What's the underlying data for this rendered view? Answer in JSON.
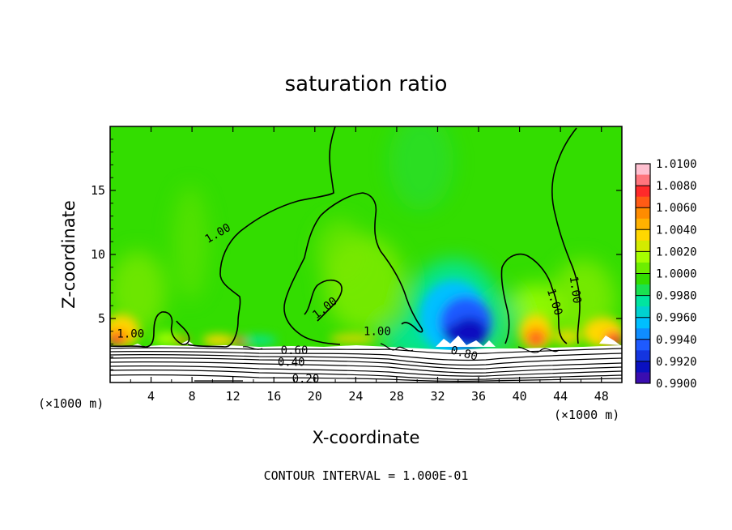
{
  "chart_data": {
    "type": "heatmap",
    "title": "saturation ratio",
    "xlabel": "X-coordinate",
    "ylabel": "Z-coordinate",
    "x_unit": "(×1000 m)",
    "y_unit": "(×1000 m)",
    "xlim": [
      0,
      50
    ],
    "ylim": [
      0,
      20
    ],
    "x_ticks": [
      4,
      8,
      12,
      16,
      20,
      24,
      28,
      32,
      36,
      40,
      44,
      48
    ],
    "y_ticks": [
      5,
      10,
      15
    ],
    "colorbar": {
      "levels": [
        "1.0100",
        "1.0080",
        "1.0060",
        "1.0040",
        "1.0020",
        "1.0000",
        "0.9980",
        "0.9960",
        "0.9940",
        "0.9920",
        "0.9900"
      ],
      "colors": [
        "#ffc0d0",
        "#ff2a2a",
        "#ff8c00",
        "#ffd700",
        "#a6ff00",
        "#33dd00",
        "#00e5a0",
        "#00bfff",
        "#1e5aff",
        "#0a10c0",
        "#6a0aa0"
      ]
    },
    "contour_labels": [
      {
        "text": "1.00",
        "x": 10.7,
        "z": 11.4,
        "angle": -30
      },
      {
        "text": "1.00",
        "x": 2.0,
        "z": 3.5,
        "angle": 0
      },
      {
        "text": "1.00",
        "x": 21.2,
        "z": 5.6,
        "angle": -38
      },
      {
        "text": "1.00",
        "x": 26.1,
        "z": 3.7,
        "angle": 0
      },
      {
        "text": "1.00",
        "x": 43.1,
        "z": 6.2,
        "angle": 72
      },
      {
        "text": "1.00",
        "x": 45.1,
        "z": 7.2,
        "angle": 82
      },
      {
        "text": "0.60",
        "x": 18.0,
        "z": 2.2,
        "angle": 0
      },
      {
        "text": "0.40",
        "x": 17.7,
        "z": 1.3,
        "angle": 0
      },
      {
        "text": "0.20",
        "x": 19.1,
        "z": 0.0,
        "angle": 0
      },
      {
        "text": "0.80",
        "x": 34.5,
        "z": 2.0,
        "angle": 15
      }
    ],
    "contour_interval_note": "CONTOUR INTERVAL = 1.000E-01",
    "grid": false,
    "legend": "right colorbar"
  }
}
